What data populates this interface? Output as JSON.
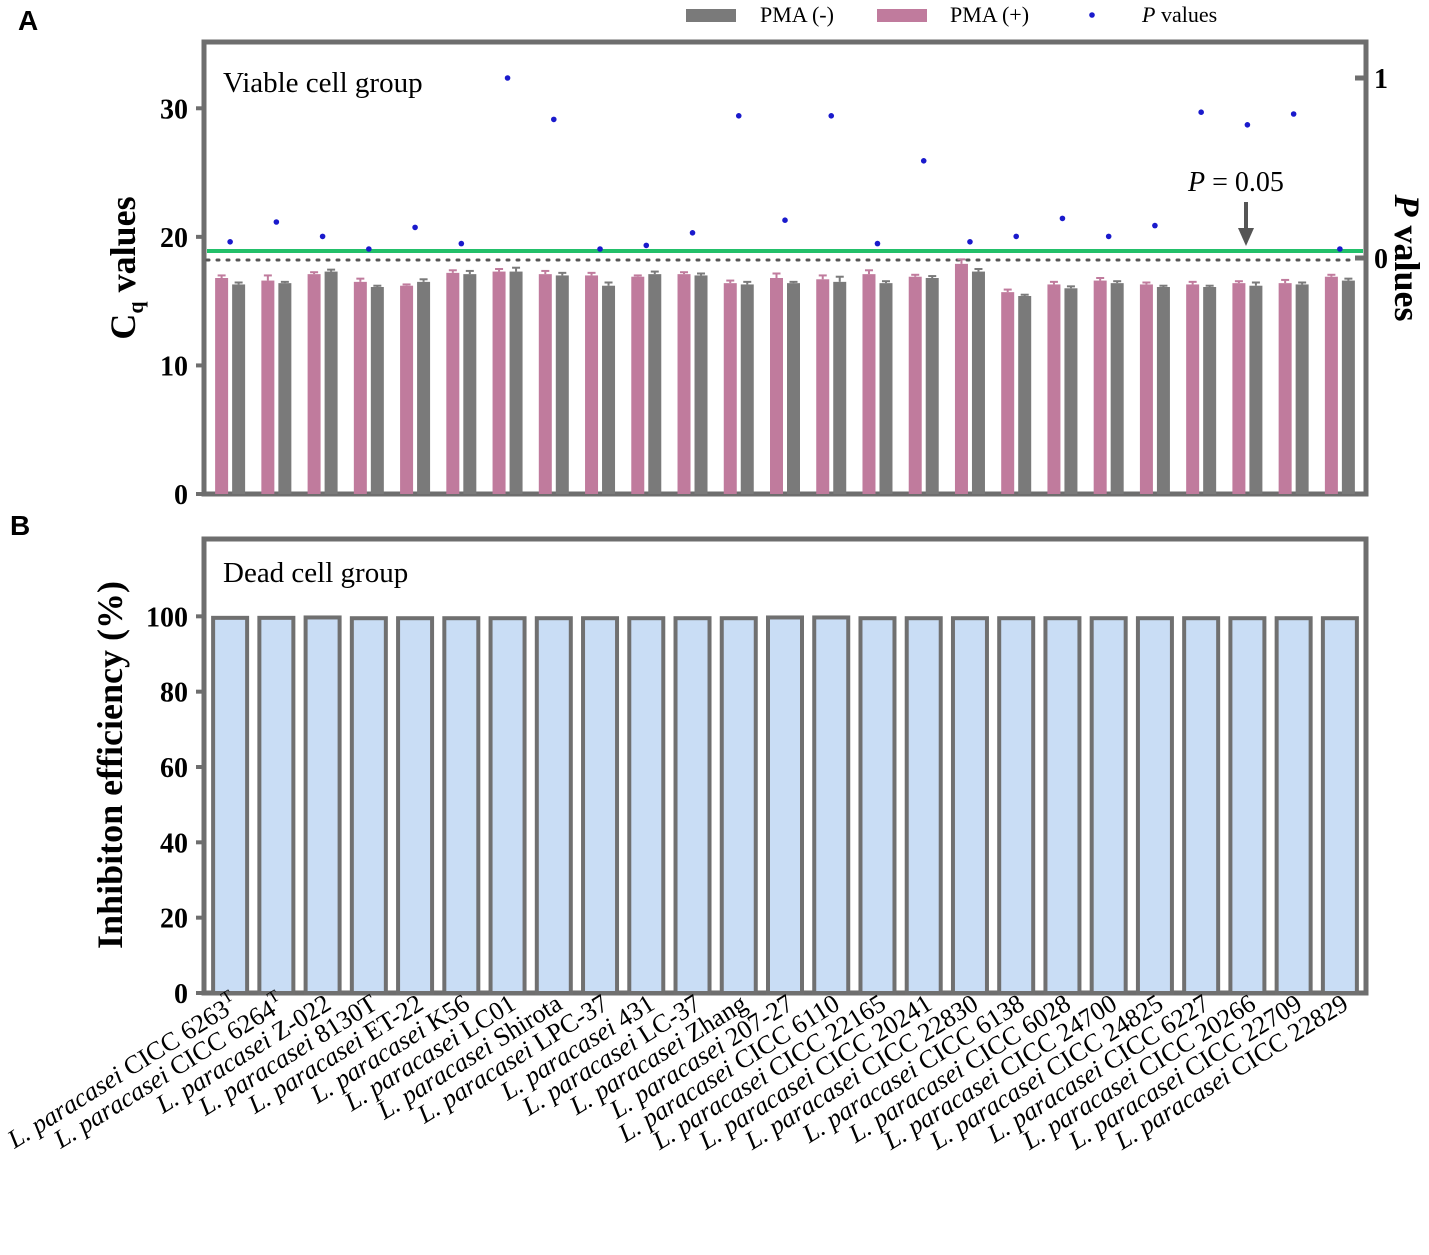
{
  "panel_a_label": "A",
  "panel_b_label": "B",
  "legend": {
    "pma_minus": "PMA (-)",
    "pma_plus": "PMA (+)",
    "p_italic": "P",
    "p_rest": " values"
  },
  "colors": {
    "pma_minus": "#7a7a7a",
    "pma_plus": "#c07b9d",
    "pvalue": "#1a1acc",
    "threshold": "#22c06a",
    "bar_b_fill": "#c9ddf5",
    "bar_b_stroke": "#707070",
    "axis": "#6e6e6e"
  },
  "x_labels": [
    {
      "prefix": "L. paracasei",
      "name": "CICC 6263",
      "sup": "T"
    },
    {
      "prefix": "L. paracasei",
      "name": "CICC 6264",
      "sup": "T"
    },
    {
      "prefix": "L. paracasei",
      "name": "Z-022",
      "sup": ""
    },
    {
      "prefix": "L. paracasei",
      "name": "8130T",
      "sup": ""
    },
    {
      "prefix": "L. paracasei",
      "name": "ET-22",
      "sup": ""
    },
    {
      "prefix": "L. paracasei",
      "name": "K56",
      "sup": ""
    },
    {
      "prefix": "L. paracasei",
      "name": "LC01",
      "sup": ""
    },
    {
      "prefix": "L. paracasei",
      "name": "Shirota",
      "sup": ""
    },
    {
      "prefix": "L. paracasei",
      "name": "LPC-37",
      "sup": ""
    },
    {
      "prefix": "L. paracasei",
      "name": "431",
      "sup": ""
    },
    {
      "prefix": "L. paracasei",
      "name": "LC-37",
      "sup": ""
    },
    {
      "prefix": "L. paracasei",
      "name": "Zhang",
      "sup": ""
    },
    {
      "prefix": "L. paracasei",
      "name": "207-27",
      "sup": ""
    },
    {
      "prefix": "L. paracasei",
      "name": "CICC 6110",
      "sup": ""
    },
    {
      "prefix": "L. paracasei",
      "name": "CICC 22165",
      "sup": ""
    },
    {
      "prefix": "L. paracasei",
      "name": "CICC 20241",
      "sup": ""
    },
    {
      "prefix": "L. paracasei",
      "name": "CICC 22830",
      "sup": ""
    },
    {
      "prefix": "L. paracasei",
      "name": "CICC 6138",
      "sup": ""
    },
    {
      "prefix": "L. paracasei",
      "name": "CICC 6028",
      "sup": ""
    },
    {
      "prefix": "L. paracasei",
      "name": "CICC 24700",
      "sup": ""
    },
    {
      "prefix": "L. paracasei",
      "name": "CICC 24825",
      "sup": ""
    },
    {
      "prefix": "L. paracasei",
      "name": "CICC 6227",
      "sup": ""
    },
    {
      "prefix": "L. paracasei",
      "name": "CICC 20266",
      "sup": ""
    },
    {
      "prefix": "L. paracasei",
      "name": "CICC 22709",
      "sup": ""
    },
    {
      "prefix": "L. paracasei",
      "name": "CICC 22829",
      "sup": ""
    }
  ],
  "chart_data": [
    {
      "type": "bar",
      "panel": "A",
      "annotation": "Viable cell group",
      "ylabel_main": "C",
      "ylabel_sub": "q",
      "ylabel_rest": " values",
      "ylim": [
        0,
        35
      ],
      "yticks": [
        0,
        10,
        20,
        30
      ],
      "y2label_italic": "P",
      "y2label_rest": " values",
      "y2ticks": [
        0,
        1
      ],
      "threshold_label_italic": "P",
      "threshold_label_rest": " = 0.05",
      "threshold_y": 18.9,
      "dotted_y": 18.2,
      "series": [
        {
          "name": "PMA (+)",
          "values": [
            16.8,
            16.6,
            17.1,
            16.5,
            16.2,
            17.2,
            17.3,
            17.1,
            17.0,
            16.9,
            17.1,
            16.4,
            16.8,
            16.7,
            17.1,
            16.9,
            17.9,
            15.7,
            16.3,
            16.6,
            16.3,
            16.3,
            16.4,
            16.4,
            16.9
          ],
          "errors": [
            0.2,
            0.4,
            0.15,
            0.25,
            0.1,
            0.2,
            0.2,
            0.25,
            0.2,
            0.1,
            0.15,
            0.2,
            0.35,
            0.3,
            0.3,
            0.15,
            0.35,
            0.2,
            0.2,
            0.2,
            0.15,
            0.2,
            0.15,
            0.25,
            0.15
          ]
        },
        {
          "name": "PMA (-)",
          "values": [
            16.3,
            16.4,
            17.3,
            16.1,
            16.5,
            17.1,
            17.3,
            17.0,
            16.2,
            17.1,
            17.0,
            16.3,
            16.4,
            16.5,
            16.4,
            16.8,
            17.3,
            15.4,
            16.0,
            16.4,
            16.1,
            16.1,
            16.2,
            16.3,
            16.6
          ],
          "errors": [
            0.15,
            0.1,
            0.15,
            0.1,
            0.2,
            0.25,
            0.3,
            0.2,
            0.25,
            0.2,
            0.15,
            0.2,
            0.1,
            0.4,
            0.15,
            0.15,
            0.2,
            0.1,
            0.15,
            0.15,
            0.1,
            0.1,
            0.25,
            0.15,
            0.15
          ]
        }
      ],
      "p_values": [
        0.09,
        0.2,
        0.12,
        0.05,
        0.17,
        0.08,
        1.0,
        0.77,
        0.05,
        0.07,
        0.14,
        0.79,
        0.21,
        0.79,
        0.08,
        0.54,
        0.09,
        0.12,
        0.22,
        0.12,
        0.18,
        0.81,
        0.74,
        0.8,
        0.05
      ]
    },
    {
      "type": "bar",
      "panel": "B",
      "annotation": "Dead cell group",
      "ylabel": "Inhibiton efficiency (%)",
      "ylim": [
        0,
        120
      ],
      "yticks": [
        0,
        20,
        40,
        60,
        80,
        100
      ],
      "series": [
        {
          "name": "Inhibition efficiency",
          "values": [
            99.6,
            99.6,
            99.7,
            99.5,
            99.5,
            99.5,
            99.5,
            99.5,
            99.5,
            99.5,
            99.5,
            99.5,
            99.7,
            99.7,
            99.5,
            99.5,
            99.5,
            99.5,
            99.5,
            99.5,
            99.5,
            99.5,
            99.5,
            99.5,
            99.5
          ]
        }
      ]
    }
  ]
}
